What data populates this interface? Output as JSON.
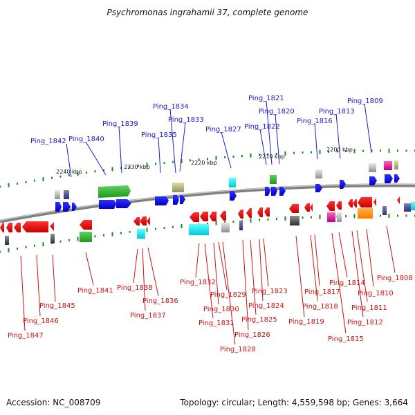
{
  "title": "Psychromonas ingrahamii 37, complete genome",
  "footer": {
    "accession": "Accession: NC_008709",
    "topology": "Topology: circular; Length: 4,559,598 bp; Genes: 3,664"
  },
  "scale_labels": [
    "2240 kbp",
    "2230 kbp",
    "2220 kbp",
    "2210 kbp",
    "2200 kbp"
  ],
  "top_genes": [
    "Ping_1842",
    "Ping_1840",
    "Ping_1839",
    "Ping_1835",
    "Ping_1834",
    "Ping_1833",
    "Ping_1827",
    "Ping_1822",
    "Ping_1821",
    "Ping_1820",
    "Ping_1816",
    "Ping_1813",
    "Ping_1809"
  ],
  "bottom_genes": [
    "Ping_1847",
    "Ping_1846",
    "Ping_1845",
    "Ping_1841",
    "Ping_1838",
    "Ping_1837",
    "Ping_1836",
    "Ping_1832",
    "Ping_1831",
    "Ping_1830",
    "Ping_1829",
    "Ping_1828",
    "Ping_1826",
    "Ping_1825",
    "Ping_1824",
    "Ping_1823",
    "Ping_1819",
    "Ping_1818",
    "Ping_1817",
    "Ping_1815",
    "Ping_1814",
    "Ping_1812",
    "Ping_1811",
    "Ping_1810",
    "Ping_1808"
  ],
  "colors": {
    "forward": "#0a0ae6",
    "reverse": "#e60a0a",
    "top_label": "#1a1acc",
    "bottom_label": "#cc1111",
    "tick": "#1a8a1a",
    "backbone": "#808080"
  }
}
